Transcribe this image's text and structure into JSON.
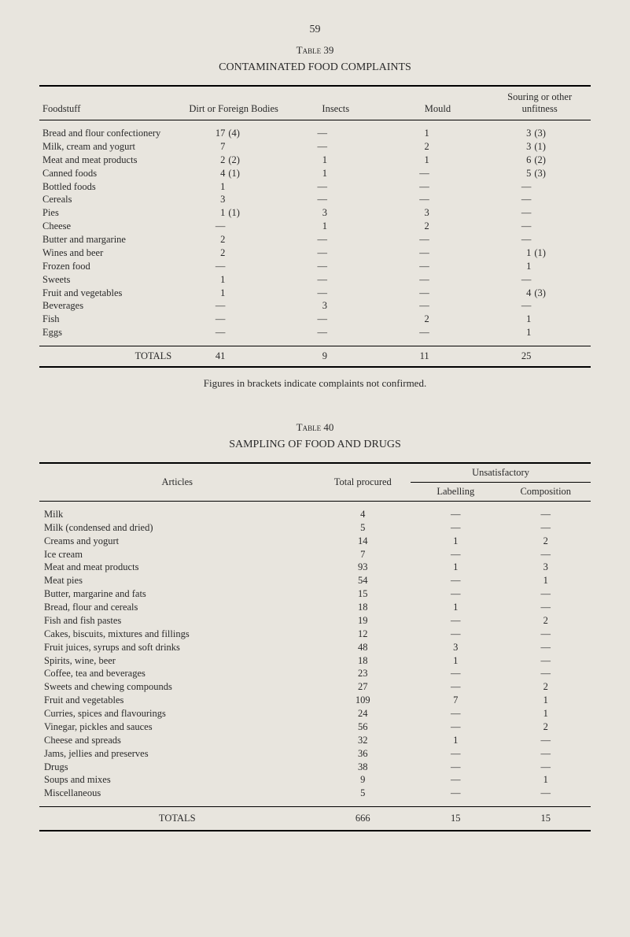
{
  "page_number": "59",
  "table39": {
    "label": "Table 39",
    "title": "CONTAMINATED FOOD COMPLAINTS",
    "headers": {
      "foodstuff": "Foodstuff",
      "dirt": "Dirt or Foreign Bodies",
      "insects": "Insects",
      "mould": "Mould",
      "souring": "Souring or other unfitness"
    },
    "rows": [
      {
        "food": "Bread and flour confectionery",
        "dirt_n": "17",
        "dirt_p": "(4)",
        "ins_n": "—",
        "ins_p": "",
        "mld_n": "1",
        "mld_p": "",
        "sor_n": "3",
        "sor_p": "(3)"
      },
      {
        "food": "Milk, cream and yogurt",
        "dirt_n": "7",
        "dirt_p": "",
        "ins_n": "—",
        "ins_p": "",
        "mld_n": "2",
        "mld_p": "",
        "sor_n": "3",
        "sor_p": "(1)"
      },
      {
        "food": "Meat and meat products",
        "dirt_n": "2",
        "dirt_p": "(2)",
        "ins_n": "1",
        "ins_p": "",
        "mld_n": "1",
        "mld_p": "",
        "sor_n": "6",
        "sor_p": "(2)"
      },
      {
        "food": "Canned foods",
        "dirt_n": "4",
        "dirt_p": "(1)",
        "ins_n": "1",
        "ins_p": "",
        "mld_n": "—",
        "mld_p": "",
        "sor_n": "5",
        "sor_p": "(3)"
      },
      {
        "food": "Bottled foods",
        "dirt_n": "1",
        "dirt_p": "",
        "ins_n": "—",
        "ins_p": "",
        "mld_n": "—",
        "mld_p": "",
        "sor_n": "—",
        "sor_p": ""
      },
      {
        "food": "Cereals",
        "dirt_n": "3",
        "dirt_p": "",
        "ins_n": "—",
        "ins_p": "",
        "mld_n": "—",
        "mld_p": "",
        "sor_n": "—",
        "sor_p": ""
      },
      {
        "food": "Pies",
        "dirt_n": "1",
        "dirt_p": "(1)",
        "ins_n": "3",
        "ins_p": "",
        "mld_n": "3",
        "mld_p": "",
        "sor_n": "—",
        "sor_p": ""
      },
      {
        "food": "Cheese",
        "dirt_n": "—",
        "dirt_p": "",
        "ins_n": "1",
        "ins_p": "",
        "mld_n": "2",
        "mld_p": "",
        "sor_n": "—",
        "sor_p": ""
      },
      {
        "food": "Butter and margarine",
        "dirt_n": "2",
        "dirt_p": "",
        "ins_n": "—",
        "ins_p": "",
        "mld_n": "—",
        "mld_p": "",
        "sor_n": "—",
        "sor_p": ""
      },
      {
        "food": "Wines and beer",
        "dirt_n": "2",
        "dirt_p": "",
        "ins_n": "—",
        "ins_p": "",
        "mld_n": "—",
        "mld_p": "",
        "sor_n": "1",
        "sor_p": "(1)"
      },
      {
        "food": "Frozen food",
        "dirt_n": "—",
        "dirt_p": "",
        "ins_n": "—",
        "ins_p": "",
        "mld_n": "—",
        "mld_p": "",
        "sor_n": "1",
        "sor_p": ""
      },
      {
        "food": "Sweets",
        "dirt_n": "1",
        "dirt_p": "",
        "ins_n": "—",
        "ins_p": "",
        "mld_n": "—",
        "mld_p": "",
        "sor_n": "—",
        "sor_p": ""
      },
      {
        "food": "Fruit and vegetables",
        "dirt_n": "1",
        "dirt_p": "",
        "ins_n": "—",
        "ins_p": "",
        "mld_n": "—",
        "mld_p": "",
        "sor_n": "4",
        "sor_p": "(3)"
      },
      {
        "food": "Beverages",
        "dirt_n": "—",
        "dirt_p": "",
        "ins_n": "3",
        "ins_p": "",
        "mld_n": "—",
        "mld_p": "",
        "sor_n": "—",
        "sor_p": ""
      },
      {
        "food": "Fish",
        "dirt_n": "—",
        "dirt_p": "",
        "ins_n": "—",
        "ins_p": "",
        "mld_n": "2",
        "mld_p": "",
        "sor_n": "1",
        "sor_p": ""
      },
      {
        "food": "Eggs",
        "dirt_n": "—",
        "dirt_p": "",
        "ins_n": "—",
        "ins_p": "",
        "mld_n": "—",
        "mld_p": "",
        "sor_n": "1",
        "sor_p": ""
      }
    ],
    "totals": {
      "label": "TOTALS",
      "dirt": "41",
      "ins": "9",
      "mld": "11",
      "sor": "25"
    },
    "caption": "Figures in brackets indicate complaints not confirmed."
  },
  "table40": {
    "label": "Table 40",
    "title": "SAMPLING OF FOOD AND DRUGS",
    "headers": {
      "articles": "Articles",
      "total": "Total procured",
      "unsat": "Unsatisfactory",
      "label": "Labelling",
      "comp": "Composition"
    },
    "rows": [
      {
        "a": "Milk",
        "t": "4",
        "l": "—",
        "c": "—"
      },
      {
        "a": "Milk (condensed and dried)",
        "t": "5",
        "l": "—",
        "c": "—"
      },
      {
        "a": "Creams and yogurt",
        "t": "14",
        "l": "1",
        "c": "2"
      },
      {
        "a": "Ice cream",
        "t": "7",
        "l": "—",
        "c": "—"
      },
      {
        "a": "Meat and meat products",
        "t": "93",
        "l": "1",
        "c": "3"
      },
      {
        "a": "Meat pies",
        "t": "54",
        "l": "—",
        "c": "1"
      },
      {
        "a": "Butter, margarine and fats",
        "t": "15",
        "l": "—",
        "c": "—"
      },
      {
        "a": "Bread, flour and cereals",
        "t": "18",
        "l": "1",
        "c": "—"
      },
      {
        "a": "Fish and fish pastes",
        "t": "19",
        "l": "—",
        "c": "2"
      },
      {
        "a": "Cakes, biscuits, mixtures and fillings",
        "t": "12",
        "l": "—",
        "c": "—"
      },
      {
        "a": "Fruit juices, syrups and soft drinks",
        "t": "48",
        "l": "3",
        "c": "—"
      },
      {
        "a": "Spirits, wine, beer",
        "t": "18",
        "l": "1",
        "c": "—"
      },
      {
        "a": "Coffee, tea and beverages",
        "t": "23",
        "l": "—",
        "c": "—"
      },
      {
        "a": "Sweets and chewing compounds",
        "t": "27",
        "l": "—",
        "c": "2"
      },
      {
        "a": "Fruit and vegetables",
        "t": "109",
        "l": "7",
        "c": "1"
      },
      {
        "a": "Curries, spices and flavourings",
        "t": "24",
        "l": "—",
        "c": "1"
      },
      {
        "a": "Vinegar, pickles and sauces",
        "t": "56",
        "l": "—",
        "c": "2"
      },
      {
        "a": "Cheese and spreads",
        "t": "32",
        "l": "1",
        "c": "—"
      },
      {
        "a": "Jams, jellies and preserves",
        "t": "36",
        "l": "—",
        "c": "—"
      },
      {
        "a": "Drugs",
        "t": "38",
        "l": "—",
        "c": "—"
      },
      {
        "a": "Soups and mixes",
        "t": "9",
        "l": "—",
        "c": "1"
      },
      {
        "a": "Miscellaneous",
        "t": "5",
        "l": "—",
        "c": "—"
      }
    ],
    "totals": {
      "label": "TOTALS",
      "t": "666",
      "l": "15",
      "c": "15"
    }
  },
  "style": {
    "background": "#e8e5de",
    "text": "#2a2a2a",
    "rule_heavy": "2.5px",
    "rule_light": "1px",
    "font_family": "Times New Roman",
    "body_fontsize_pt": 12.5,
    "title_fontsize_pt": 14
  }
}
